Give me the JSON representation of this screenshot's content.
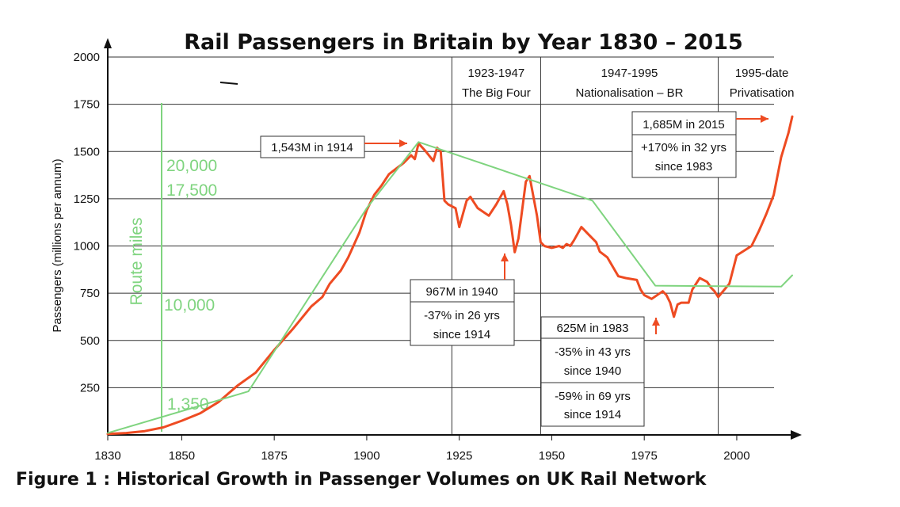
{
  "chart_data": {
    "type": "line",
    "title": "Rail Passengers in Britain by Year 1830 – 2015",
    "ylabel": "Passengers (millions per annum)",
    "xlabel": "",
    "xlim": [
      1830,
      2015
    ],
    "ylim": [
      0,
      2000
    ],
    "x_ticks": [
      1830,
      1850,
      1875,
      1900,
      1925,
      1950,
      1975,
      2000
    ],
    "y_ticks": [
      250,
      500,
      750,
      1000,
      1250,
      1500,
      1750,
      2000
    ],
    "grid": "horizontal",
    "colors": {
      "passengers": "#ee4b22",
      "route_miles": "#7fd47f",
      "grid": "#333333"
    },
    "series": [
      {
        "name": "Passengers",
        "color": "#ee4b22",
        "x": [
          1830,
          1835,
          1840,
          1845,
          1850,
          1855,
          1860,
          1865,
          1870,
          1875,
          1880,
          1885,
          1888,
          1890,
          1893,
          1895,
          1898,
          1900,
          1902,
          1904,
          1906,
          1908,
          1910,
          1912,
          1913,
          1914,
          1916,
          1918,
          1919,
          1920,
          1921,
          1922,
          1924,
          1925,
          1927,
          1928,
          1930,
          1933,
          1935,
          1937,
          1938,
          1939,
          1940,
          1941,
          1943,
          1944,
          1946,
          1947,
          1948,
          1950,
          1952,
          1953,
          1954,
          1955,
          1956,
          1958,
          1960,
          1962,
          1963,
          1965,
          1968,
          1970,
          1973,
          1974,
          1975,
          1977,
          1980,
          1981,
          1982,
          1983,
          1984,
          1985,
          1987,
          1988,
          1990,
          1992,
          1993,
          1994,
          1995,
          1998,
          2000,
          2004,
          2006,
          2008,
          2010,
          2012,
          2014,
          2015
        ],
        "values": [
          5,
          10,
          20,
          40,
          75,
          115,
          175,
          260,
          330,
          450,
          560,
          680,
          730,
          800,
          870,
          940,
          1070,
          1190,
          1270,
          1320,
          1380,
          1410,
          1440,
          1480,
          1460,
          1543,
          1500,
          1450,
          1520,
          1500,
          1240,
          1220,
          1200,
          1100,
          1240,
          1260,
          1200,
          1160,
          1220,
          1290,
          1220,
          1110,
          967,
          1040,
          1340,
          1370,
          1160,
          1020,
          1000,
          990,
          1000,
          990,
          1010,
          1000,
          1030,
          1100,
          1060,
          1020,
          970,
          940,
          840,
          830,
          820,
          770,
          740,
          720,
          760,
          740,
          700,
          625,
          690,
          700,
          700,
          770,
          830,
          810,
          780,
          760,
          730,
          800,
          950,
          1000,
          1080,
          1170,
          1270,
          1470,
          1600,
          1685
        ]
      },
      {
        "name": "Route miles",
        "color": "#7fd47f",
        "x": [
          1830,
          1868,
          1900,
          1914,
          1961,
          1978,
          2012,
          2015
        ],
        "values": [
          10,
          230,
          1200,
          1550,
          1240,
          790,
          785,
          845
        ]
      }
    ],
    "route_miles_labels": [
      "Route miles",
      "20,000",
      "17,500",
      "10,000",
      "1,350"
    ],
    "era_dividers": [
      {
        "year": 1923,
        "lines": [
          "1923-1947",
          "The Big Four"
        ]
      },
      {
        "year": 1947,
        "lines": [
          "1947-1995",
          "Nationalisation – BR"
        ]
      },
      {
        "year": 1995,
        "lines": [
          "1995-date",
          "Privatisation"
        ]
      }
    ],
    "annotations": [
      {
        "id": "peak-1914",
        "year": 1914,
        "value": 1543,
        "text": "1,543M in 1914"
      },
      {
        "id": "low-1940",
        "year": 1940,
        "value": 967,
        "text": "967M in 1940",
        "subtext": [
          "-37% in 26 yrs",
          "since 1914"
        ]
      },
      {
        "id": "low-1983",
        "year": 1983,
        "value": 625,
        "text": "625M in 1983",
        "subtext": [
          "-35% in 43 yrs",
          "since 1940"
        ],
        "subtext2": [
          "-59% in 69 yrs",
          "since 1914"
        ]
      },
      {
        "id": "high-2015",
        "year": 2015,
        "value": 1685,
        "text": "1,685M in 2015",
        "subtext": [
          "+170% in 32 yrs",
          "since 1983"
        ]
      }
    ]
  },
  "figure_caption": "Figure 1 : Historical Growth in Passenger Volumes on UK Rail Network"
}
